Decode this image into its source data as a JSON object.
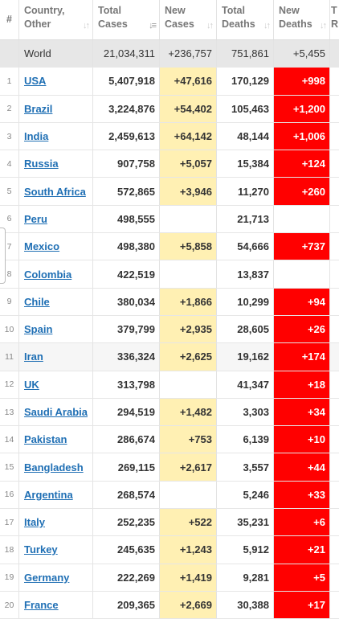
{
  "headers": {
    "num": "#",
    "country": [
      "Country,",
      "Other"
    ],
    "total_cases": [
      "Total",
      "Cases"
    ],
    "new_cases": [
      "New",
      "Cases"
    ],
    "total_deaths": [
      "Total",
      "Deaths"
    ],
    "new_deaths": [
      "New",
      "Deaths"
    ],
    "extra": [
      "T",
      "R"
    ]
  },
  "world": {
    "name": "World",
    "total_cases": "21,034,311",
    "new_cases": "+236,757",
    "total_deaths": "751,861",
    "new_deaths": "+5,455"
  },
  "rows": [
    {
      "n": "1",
      "name": "USA",
      "total_cases": "5,407,918",
      "new_cases": "+47,616",
      "total_deaths": "170,129",
      "new_deaths": "+998"
    },
    {
      "n": "2",
      "name": "Brazil",
      "total_cases": "3,224,876",
      "new_cases": "+54,402",
      "total_deaths": "105,463",
      "new_deaths": "+1,200"
    },
    {
      "n": "3",
      "name": "India",
      "total_cases": "2,459,613",
      "new_cases": "+64,142",
      "total_deaths": "48,144",
      "new_deaths": "+1,006"
    },
    {
      "n": "4",
      "name": "Russia",
      "total_cases": "907,758",
      "new_cases": "+5,057",
      "total_deaths": "15,384",
      "new_deaths": "+124"
    },
    {
      "n": "5",
      "name": "South Africa",
      "total_cases": "572,865",
      "new_cases": "+3,946",
      "total_deaths": "11,270",
      "new_deaths": "+260"
    },
    {
      "n": "6",
      "name": "Peru",
      "total_cases": "498,555",
      "new_cases": "",
      "total_deaths": "21,713",
      "new_deaths": ""
    },
    {
      "n": "7",
      "name": "Mexico",
      "total_cases": "498,380",
      "new_cases": "+5,858",
      "total_deaths": "54,666",
      "new_deaths": "+737"
    },
    {
      "n": "8",
      "name": "Colombia",
      "total_cases": "422,519",
      "new_cases": "",
      "total_deaths": "13,837",
      "new_deaths": ""
    },
    {
      "n": "9",
      "name": "Chile",
      "total_cases": "380,034",
      "new_cases": "+1,866",
      "total_deaths": "10,299",
      "new_deaths": "+94"
    },
    {
      "n": "10",
      "name": "Spain",
      "total_cases": "379,799",
      "new_cases": "+2,935",
      "total_deaths": "28,605",
      "new_deaths": "+26"
    },
    {
      "n": "11",
      "name": "Iran",
      "total_cases": "336,324",
      "new_cases": "+2,625",
      "total_deaths": "19,162",
      "new_deaths": "+174"
    },
    {
      "n": "12",
      "name": "UK",
      "total_cases": "313,798",
      "new_cases": "",
      "total_deaths": "41,347",
      "new_deaths": "+18"
    },
    {
      "n": "13",
      "name": "Saudi Arabia",
      "total_cases": "294,519",
      "new_cases": "+1,482",
      "total_deaths": "3,303",
      "new_deaths": "+34"
    },
    {
      "n": "14",
      "name": "Pakistan",
      "total_cases": "286,674",
      "new_cases": "+753",
      "total_deaths": "6,139",
      "new_deaths": "+10"
    },
    {
      "n": "15",
      "name": "Bangladesh",
      "total_cases": "269,115",
      "new_cases": "+2,617",
      "total_deaths": "3,557",
      "new_deaths": "+44"
    },
    {
      "n": "16",
      "name": "Argentina",
      "total_cases": "268,574",
      "new_cases": "",
      "total_deaths": "5,246",
      "new_deaths": "+33"
    },
    {
      "n": "17",
      "name": "Italy",
      "total_cases": "252,235",
      "new_cases": "+522",
      "total_deaths": "35,231",
      "new_deaths": "+6"
    },
    {
      "n": "18",
      "name": "Turkey",
      "total_cases": "245,635",
      "new_cases": "+1,243",
      "total_deaths": "5,912",
      "new_deaths": "+21"
    },
    {
      "n": "19",
      "name": "Germany",
      "total_cases": "222,269",
      "new_cases": "+1,419",
      "total_deaths": "9,281",
      "new_deaths": "+5"
    },
    {
      "n": "20",
      "name": "France",
      "total_cases": "209,365",
      "new_cases": "+2,669",
      "total_deaths": "30,388",
      "new_deaths": "+17"
    }
  ],
  "colors": {
    "new_cases_highlight": "#fff0b3",
    "new_deaths_highlight": "#ff0000",
    "link": "#1f6fb4",
    "world_row": "#e7e7e7"
  },
  "icons": {
    "sort": "sort-arrows-icon",
    "sort_active": "sort-desc-icon"
  }
}
